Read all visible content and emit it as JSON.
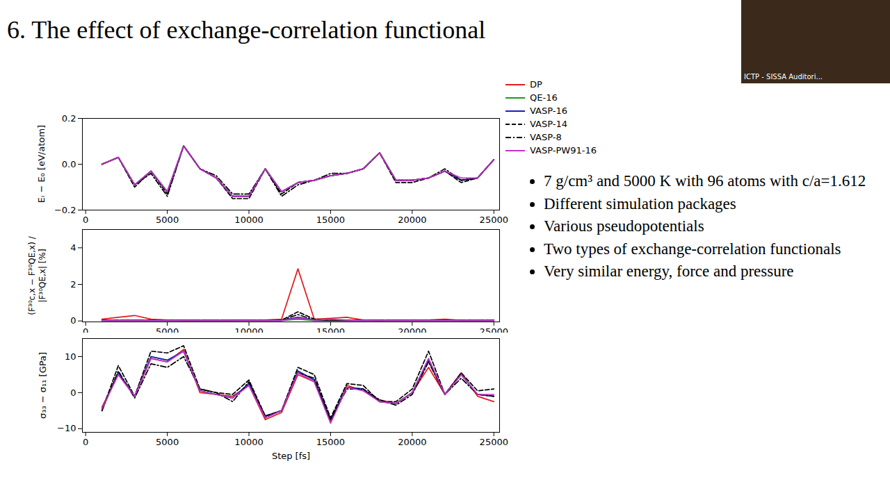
{
  "title": "6. The effect of exchange-correlation functional",
  "bullets": [
    "7 g/cm³ and 5000 K with 96 atoms with c/a=1.612",
    "Different simulation packages",
    "Various pseudopotentials",
    "Two types of exchange-correlation functionals",
    "Very similar energy, force and pressure"
  ],
  "video_caption": "ICTP - SISSA Auditori...",
  "chart_data": [
    {
      "type": "line",
      "y_label": "Eᵢ − E₀ [eV/atom]",
      "legend": "top-right",
      "x": [
        1000,
        2000,
        3000,
        4000,
        5000,
        6000,
        7000,
        8000,
        9000,
        10000,
        11000,
        12000,
        13000,
        14000,
        15000,
        16000,
        17000,
        18000,
        19000,
        20000,
        21000,
        22000,
        23000,
        24000,
        25000
      ],
      "xlim": [
        -200,
        25350
      ],
      "xticks": [
        0,
        5000,
        10000,
        15000,
        20000,
        25000
      ],
      "ylim": [
        -0.2,
        0.2
      ],
      "yticks": [
        {
          "value": -0.2,
          "label": "−0.2"
        },
        {
          "value": 0,
          "label": "0.0"
        },
        {
          "value": 0.2,
          "label": "0.2"
        }
      ],
      "series": [
        {
          "name": "DP",
          "color": "#e31a1c",
          "line_style": "solid",
          "values": [
            0.0,
            0.03,
            -0.09,
            -0.03,
            -0.12,
            0.08,
            -0.02,
            -0.06,
            -0.14,
            -0.14,
            -0.02,
            -0.12,
            -0.08,
            -0.07,
            -0.05,
            -0.04,
            -0.02,
            0.05,
            -0.07,
            -0.07,
            -0.06,
            -0.03,
            -0.07,
            -0.06,
            0.02
          ]
        },
        {
          "name": "QE-16",
          "color": "#1a9a1a",
          "line_style": "solid",
          "values": [
            0.0,
            0.03,
            -0.09,
            -0.03,
            -0.12,
            0.08,
            -0.02,
            -0.06,
            -0.14,
            -0.14,
            -0.02,
            -0.12,
            -0.08,
            -0.07,
            -0.05,
            -0.04,
            -0.02,
            0.05,
            -0.07,
            -0.07,
            -0.06,
            -0.03,
            -0.07,
            -0.06,
            0.02
          ]
        },
        {
          "name": "VASP-16",
          "color": "#1c1cc0",
          "line_style": "solid",
          "values": [
            0.0,
            0.03,
            -0.09,
            -0.03,
            -0.12,
            0.08,
            -0.02,
            -0.06,
            -0.14,
            -0.14,
            -0.02,
            -0.12,
            -0.08,
            -0.07,
            -0.05,
            -0.04,
            -0.02,
            0.05,
            -0.07,
            -0.07,
            -0.06,
            -0.03,
            -0.07,
            -0.06,
            0.02
          ]
        },
        {
          "name": "VASP-14",
          "color": "#000000",
          "line_style": "dashed",
          "values": [
            0.0,
            0.03,
            -0.1,
            -0.03,
            -0.13,
            0.08,
            -0.02,
            -0.06,
            -0.15,
            -0.15,
            -0.02,
            -0.13,
            -0.08,
            -0.07,
            -0.05,
            -0.04,
            -0.02,
            0.05,
            -0.08,
            -0.08,
            -0.06,
            -0.03,
            -0.08,
            -0.06,
            0.02
          ]
        },
        {
          "name": "VASP-8",
          "color": "#000000",
          "line_style": "dashdot",
          "values": [
            0.0,
            0.03,
            -0.09,
            -0.04,
            -0.14,
            0.08,
            -0.02,
            -0.05,
            -0.13,
            -0.13,
            -0.02,
            -0.14,
            -0.09,
            -0.07,
            -0.04,
            -0.04,
            -0.02,
            0.05,
            -0.07,
            -0.07,
            -0.06,
            -0.02,
            -0.07,
            -0.06,
            0.02
          ]
        },
        {
          "name": "VASP-PW91-16",
          "color": "#c231c9",
          "line_style": "solid",
          "values": [
            0.0,
            0.03,
            -0.09,
            -0.03,
            -0.12,
            0.08,
            -0.02,
            -0.06,
            -0.14,
            -0.14,
            -0.02,
            -0.12,
            -0.08,
            -0.07,
            -0.05,
            -0.04,
            -0.02,
            0.05,
            -0.07,
            -0.07,
            -0.06,
            -0.03,
            -0.06,
            -0.06,
            0.02
          ]
        }
      ]
    },
    {
      "type": "line",
      "y_label": "(F³⁰c,x − F³⁰QE,x) / |F³⁰QE,x| [%]",
      "x": [
        1000,
        2000,
        3000,
        4000,
        5000,
        6000,
        7000,
        8000,
        9000,
        10000,
        11000,
        12000,
        13000,
        14000,
        15000,
        16000,
        17000,
        18000,
        19000,
        20000,
        21000,
        22000,
        23000,
        24000,
        25000
      ],
      "xlim": [
        -200,
        25350
      ],
      "xticks": [
        0,
        5000,
        10000,
        15000,
        20000,
        25000
      ],
      "ylim": [
        -0.05,
        5
      ],
      "yticks": [
        0,
        2,
        4
      ],
      "series": [
        {
          "name": "DP",
          "color": "#e31a1c",
          "line_style": "solid",
          "values": [
            0.1,
            0.2,
            0.3,
            0.1,
            0.05,
            0.03,
            0.03,
            0.03,
            0.03,
            0.05,
            0.05,
            0.1,
            2.85,
            0.1,
            0.15,
            0.2,
            0.05,
            0.03,
            0.05,
            0.05,
            0.05,
            0.1,
            0.03,
            0.03,
            0.03
          ]
        },
        {
          "name": "QE-16",
          "color": "#1a9a1a",
          "line_style": "solid",
          "values": [
            0.02,
            0.02,
            0.02,
            0.02,
            0.02,
            0.02,
            0.02,
            0.02,
            0.02,
            0.02,
            0.02,
            0.02,
            0.1,
            0.02,
            0.02,
            0.02,
            0.02,
            0.02,
            0.02,
            0.02,
            0.02,
            0.02,
            0.02,
            0.02,
            0.02
          ]
        },
        {
          "name": "VASP-16",
          "color": "#1c1cc0",
          "line_style": "solid",
          "values": [
            0.03,
            0.03,
            0.03,
            0.03,
            0.03,
            0.03,
            0.03,
            0.03,
            0.03,
            0.03,
            0.03,
            0.03,
            0.2,
            0.05,
            0.03,
            0.03,
            0.03,
            0.03,
            0.03,
            0.03,
            0.03,
            0.03,
            0.03,
            0.03,
            0.03
          ]
        },
        {
          "name": "VASP-14",
          "color": "#000000",
          "line_style": "dashed",
          "values": [
            0.04,
            0.04,
            0.04,
            0.04,
            0.04,
            0.04,
            0.04,
            0.04,
            0.04,
            0.04,
            0.04,
            0.05,
            0.5,
            0.1,
            0.04,
            0.04,
            0.04,
            0.04,
            0.04,
            0.04,
            0.04,
            0.04,
            0.04,
            0.04,
            0.04
          ]
        },
        {
          "name": "VASP-8",
          "color": "#000000",
          "line_style": "dashdot",
          "values": [
            0.04,
            0.04,
            0.04,
            0.04,
            0.04,
            0.04,
            0.04,
            0.04,
            0.04,
            0.04,
            0.04,
            0.04,
            0.35,
            0.05,
            0.04,
            0.04,
            0.04,
            0.04,
            0.04,
            0.04,
            0.04,
            0.04,
            0.04,
            0.04,
            0.04
          ]
        },
        {
          "name": "VASP-PW91-16",
          "color": "#c231c9",
          "line_style": "solid",
          "values": [
            0.03,
            0.03,
            0.03,
            0.03,
            0.03,
            0.03,
            0.03,
            0.03,
            0.03,
            0.03,
            0.03,
            0.03,
            0.15,
            0.05,
            0.1,
            0.05,
            0.03,
            0.03,
            0.03,
            0.03,
            0.03,
            0.03,
            0.03,
            0.03,
            0.03
          ]
        }
      ]
    },
    {
      "type": "line",
      "y_label": "σ₃₃ − σ₁₁ [GPa]",
      "x_label": "Step [fs]",
      "x": [
        1000,
        2000,
        3000,
        4000,
        5000,
        6000,
        7000,
        8000,
        9000,
        10000,
        11000,
        12000,
        13000,
        14000,
        15000,
        16000,
        17000,
        18000,
        19000,
        20000,
        21000,
        22000,
        23000,
        24000,
        25000
      ],
      "xlim": [
        -200,
        25350
      ],
      "xticks": [
        0,
        5000,
        10000,
        15000,
        20000,
        25000
      ],
      "ylim": [
        -11,
        15
      ],
      "yticks": [
        {
          "value": -10,
          "label": "−10"
        },
        0,
        10
      ],
      "series": [
        {
          "name": "DP",
          "color": "#e31a1c",
          "line_style": "solid",
          "values": [
            -4,
            5,
            -1,
            9.5,
            8.5,
            12,
            0,
            -0.5,
            -1,
            2,
            -7.5,
            -5.5,
            5,
            3,
            -8,
            2,
            0.5,
            -2,
            -3,
            0,
            7,
            -0.5,
            5.5,
            -1,
            -2.5
          ]
        },
        {
          "name": "QE-16",
          "color": "#1a9a1a",
          "line_style": "solid",
          "values": [
            -4.5,
            5.5,
            -1,
            10,
            9,
            11.5,
            0.5,
            -0.5,
            -1.5,
            2.5,
            -6.5,
            -5,
            6,
            3.5,
            -7.5,
            1.5,
            1,
            -2.5,
            -3,
            0,
            9,
            -0.5,
            5,
            -0.5,
            -1
          ]
        },
        {
          "name": "VASP-16",
          "color": "#1c1cc0",
          "line_style": "solid",
          "values": [
            -4.5,
            5.5,
            -1,
            10,
            9,
            11.5,
            0.5,
            -0.5,
            -1.5,
            2.5,
            -6.5,
            -5,
            6,
            3.5,
            -7.5,
            1.5,
            1,
            -2.5,
            -3,
            0,
            9,
            -0.5,
            5,
            -0.5,
            -1
          ]
        },
        {
          "name": "VASP-14",
          "color": "#000000",
          "line_style": "dashed",
          "values": [
            -5,
            7.5,
            -1,
            11.5,
            11,
            13,
            1,
            0,
            -0.5,
            3.5,
            -6.5,
            -5,
            7,
            5,
            -7,
            2.5,
            2,
            -2.5,
            -2.5,
            1,
            11.5,
            -0.5,
            5.5,
            0.5,
            1
          ]
        },
        {
          "name": "VASP-8",
          "color": "#000000",
          "line_style": "dashdot",
          "values": [
            -5,
            6,
            -1.5,
            8,
            7,
            10,
            1,
            0,
            -2.5,
            3,
            -7,
            -5,
            5.5,
            4,
            -7.5,
            1,
            1,
            -2,
            -3.5,
            -0.5,
            8.5,
            -0.5,
            4,
            -0.5,
            -1
          ]
        },
        {
          "name": "VASP-PW91-16",
          "color": "#c231c9",
          "line_style": "solid",
          "values": [
            -4.5,
            5,
            -1,
            9.5,
            8.5,
            11.5,
            0.5,
            -0.5,
            -1.5,
            2,
            -7,
            -5,
            5.5,
            3,
            -8.5,
            1.5,
            0.5,
            -2.5,
            -3,
            0,
            9.5,
            -0.5,
            5,
            -0.5,
            -0.5
          ]
        }
      ]
    }
  ]
}
